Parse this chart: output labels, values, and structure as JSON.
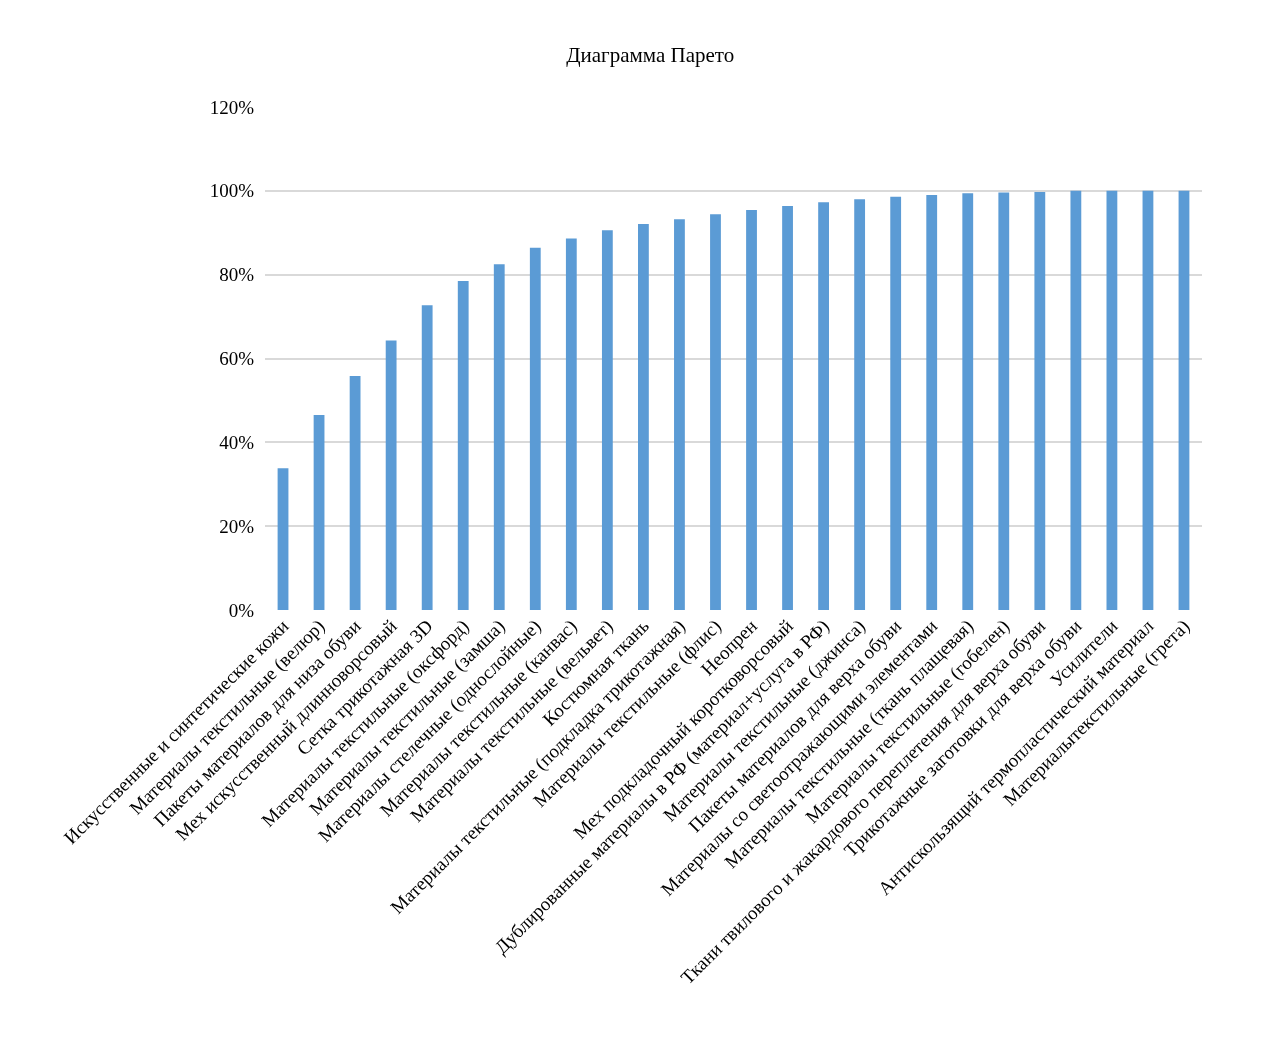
{
  "chart_data": {
    "type": "bar",
    "title": "Диаграмма Парето",
    "categories": [
      "Искусственные и синтетические кожи",
      "Материалы текстильные (велюр)",
      "Пакеты материалов для низа обуви",
      "Мех искусственный длинноворсовый",
      "Сетка трикотажная 3D",
      "Материалы текстильные (оксфорд)",
      "Материалы текстильные (замша)",
      "Материалы стелечные (однослойные)",
      "Материалы текстильные (канвас)",
      "Материалы текстильные (вельвет)",
      "Костюмная ткань",
      "Материалы текстильные (подкладка трикотажная)",
      "Материалы текстильные (флис)",
      "Неопрен",
      "Мех подкладочный коротковорсовый",
      "Дублированные материалы в РФ (материал+услуга в РФ)",
      "Материалы текстильные (джинса)",
      "Пакеты материалов для верха обуви",
      "Материалы со светоотражающими элементами",
      "Материалы текстильные (ткань плащевая)",
      "Материалы текстильные (гобелен)",
      "Ткани твилового и жакардового переплетения для верха обуви",
      "Трикотажные заготовки для верха обуви",
      "Усилители",
      "Антискользящий термопластический материал",
      "Материалытекстильные (грета)"
    ],
    "values": [
      33.8,
      46.5,
      55.8,
      64.3,
      72.7,
      78.5,
      82.5,
      86.4,
      88.6,
      90.6,
      92.1,
      93.2,
      94.4,
      95.4,
      96.4,
      97.3,
      98.0,
      98.6,
      99.0,
      99.4,
      99.6,
      99.7,
      100,
      100,
      100,
      100
    ],
    "color": "#5b9bd5",
    "ylim": [
      0,
      120
    ],
    "yticks": [
      {
        "value": 0,
        "label": "0%"
      },
      {
        "value": 20,
        "label": "20%"
      },
      {
        "value": 40,
        "label": "40%"
      },
      {
        "value": 60,
        "label": "60%"
      },
      {
        "value": 80,
        "label": "80%"
      },
      {
        "value": 100,
        "label": "100%"
      },
      {
        "value": 120,
        "label": "120%"
      }
    ],
    "grid": "y"
  }
}
